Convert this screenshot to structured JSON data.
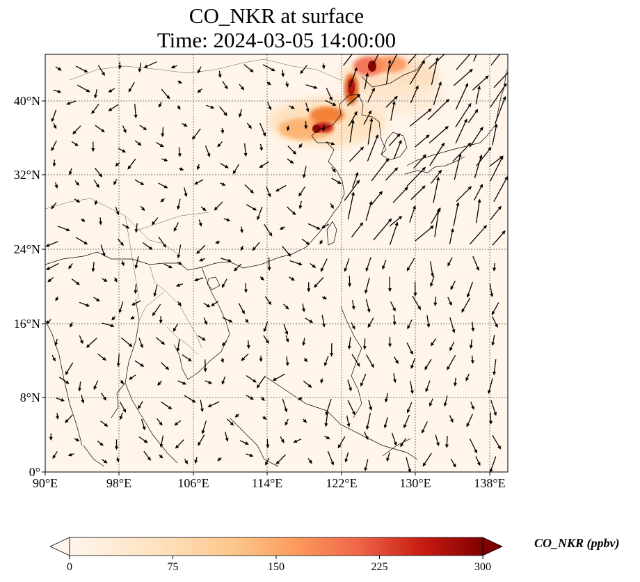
{
  "title": {
    "line1": "CO_NKR at surface",
    "line2": "Time: 2024-03-05 14:00:00"
  },
  "map": {
    "x_ticks": [
      "90°E",
      "98°E",
      "106°E",
      "114°E",
      "122°E",
      "130°E",
      "138°E"
    ],
    "y_ticks": [
      "40°N",
      "32°N",
      "24°N",
      "16°N",
      "8°N",
      "0°"
    ],
    "extent_lon": [
      90,
      140
    ],
    "extent_lat": [
      0,
      45
    ],
    "gridlines": true,
    "background_color": "#fff5eb",
    "hotspot_region": "North China Plain / Bohai region",
    "wind_vectors": true
  },
  "colorbar": {
    "label": "CO_NKR (ppbv)",
    "ticks": [
      "0",
      "75",
      "150",
      "225",
      "300"
    ],
    "min": 0,
    "max": 300,
    "colormap": "OrRd",
    "extend": "both",
    "colors": [
      "#fff5eb",
      "#fdd49e",
      "#fdae6b",
      "#f16913",
      "#d94801",
      "#7f0000"
    ]
  }
}
